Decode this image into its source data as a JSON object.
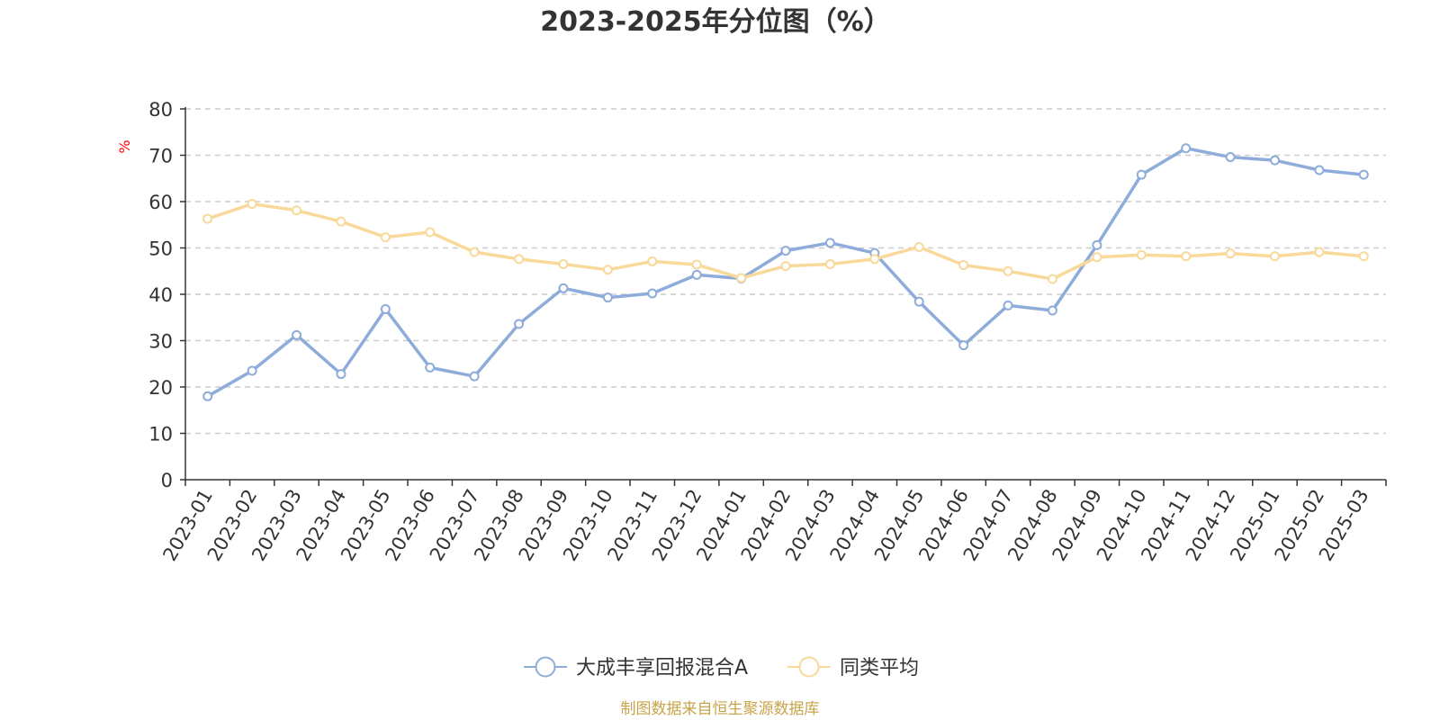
{
  "chart_data": {
    "type": "line",
    "title": "2023-2025年分位图（%）",
    "ylabel": "%",
    "xlabel": "",
    "ylim": [
      0,
      80
    ],
    "yticks": [
      0,
      10,
      20,
      30,
      40,
      50,
      60,
      70,
      80
    ],
    "grid": true,
    "legend_position": "bottom-center",
    "categories": [
      "2023-01",
      "2023-02",
      "2023-03",
      "2023-04",
      "2023-05",
      "2023-06",
      "2023-07",
      "2023-08",
      "2023-09",
      "2023-10",
      "2023-11",
      "2023-12",
      "2024-01",
      "2024-02",
      "2024-03",
      "2024-04",
      "2024-05",
      "2024-06",
      "2024-07",
      "2024-08",
      "2024-09",
      "2024-10",
      "2024-11",
      "2024-12",
      "2025-01",
      "2025-02",
      "2025-03"
    ],
    "series": [
      {
        "name": "大成丰享回报混合A",
        "color": "#8eacd9",
        "values": [
          18.0,
          23.5,
          31.2,
          22.8,
          36.8,
          24.2,
          22.3,
          33.6,
          41.3,
          39.3,
          40.2,
          44.2,
          43.4,
          49.4,
          51.1,
          48.9,
          38.4,
          29.0,
          37.6,
          36.5,
          50.6,
          65.8,
          71.5,
          69.6,
          68.9,
          66.8,
          65.8
        ]
      },
      {
        "name": "同类平均",
        "color": "#f8d999",
        "values": [
          56.3,
          59.5,
          58.1,
          55.7,
          52.3,
          53.4,
          49.1,
          47.6,
          46.5,
          45.3,
          47.1,
          46.4,
          43.5,
          46.1,
          46.5,
          47.6,
          50.2,
          46.3,
          45.0,
          43.3,
          48.0,
          48.5,
          48.2,
          48.8,
          48.2,
          49.1,
          48.2
        ]
      }
    ]
  },
  "footer": {
    "source": "制图数据来自恒生聚源数据库"
  },
  "colors": {
    "axis": "#333333",
    "grid": "#cccccc",
    "unit_label": "#ff0000",
    "source": "#c8a44a"
  }
}
